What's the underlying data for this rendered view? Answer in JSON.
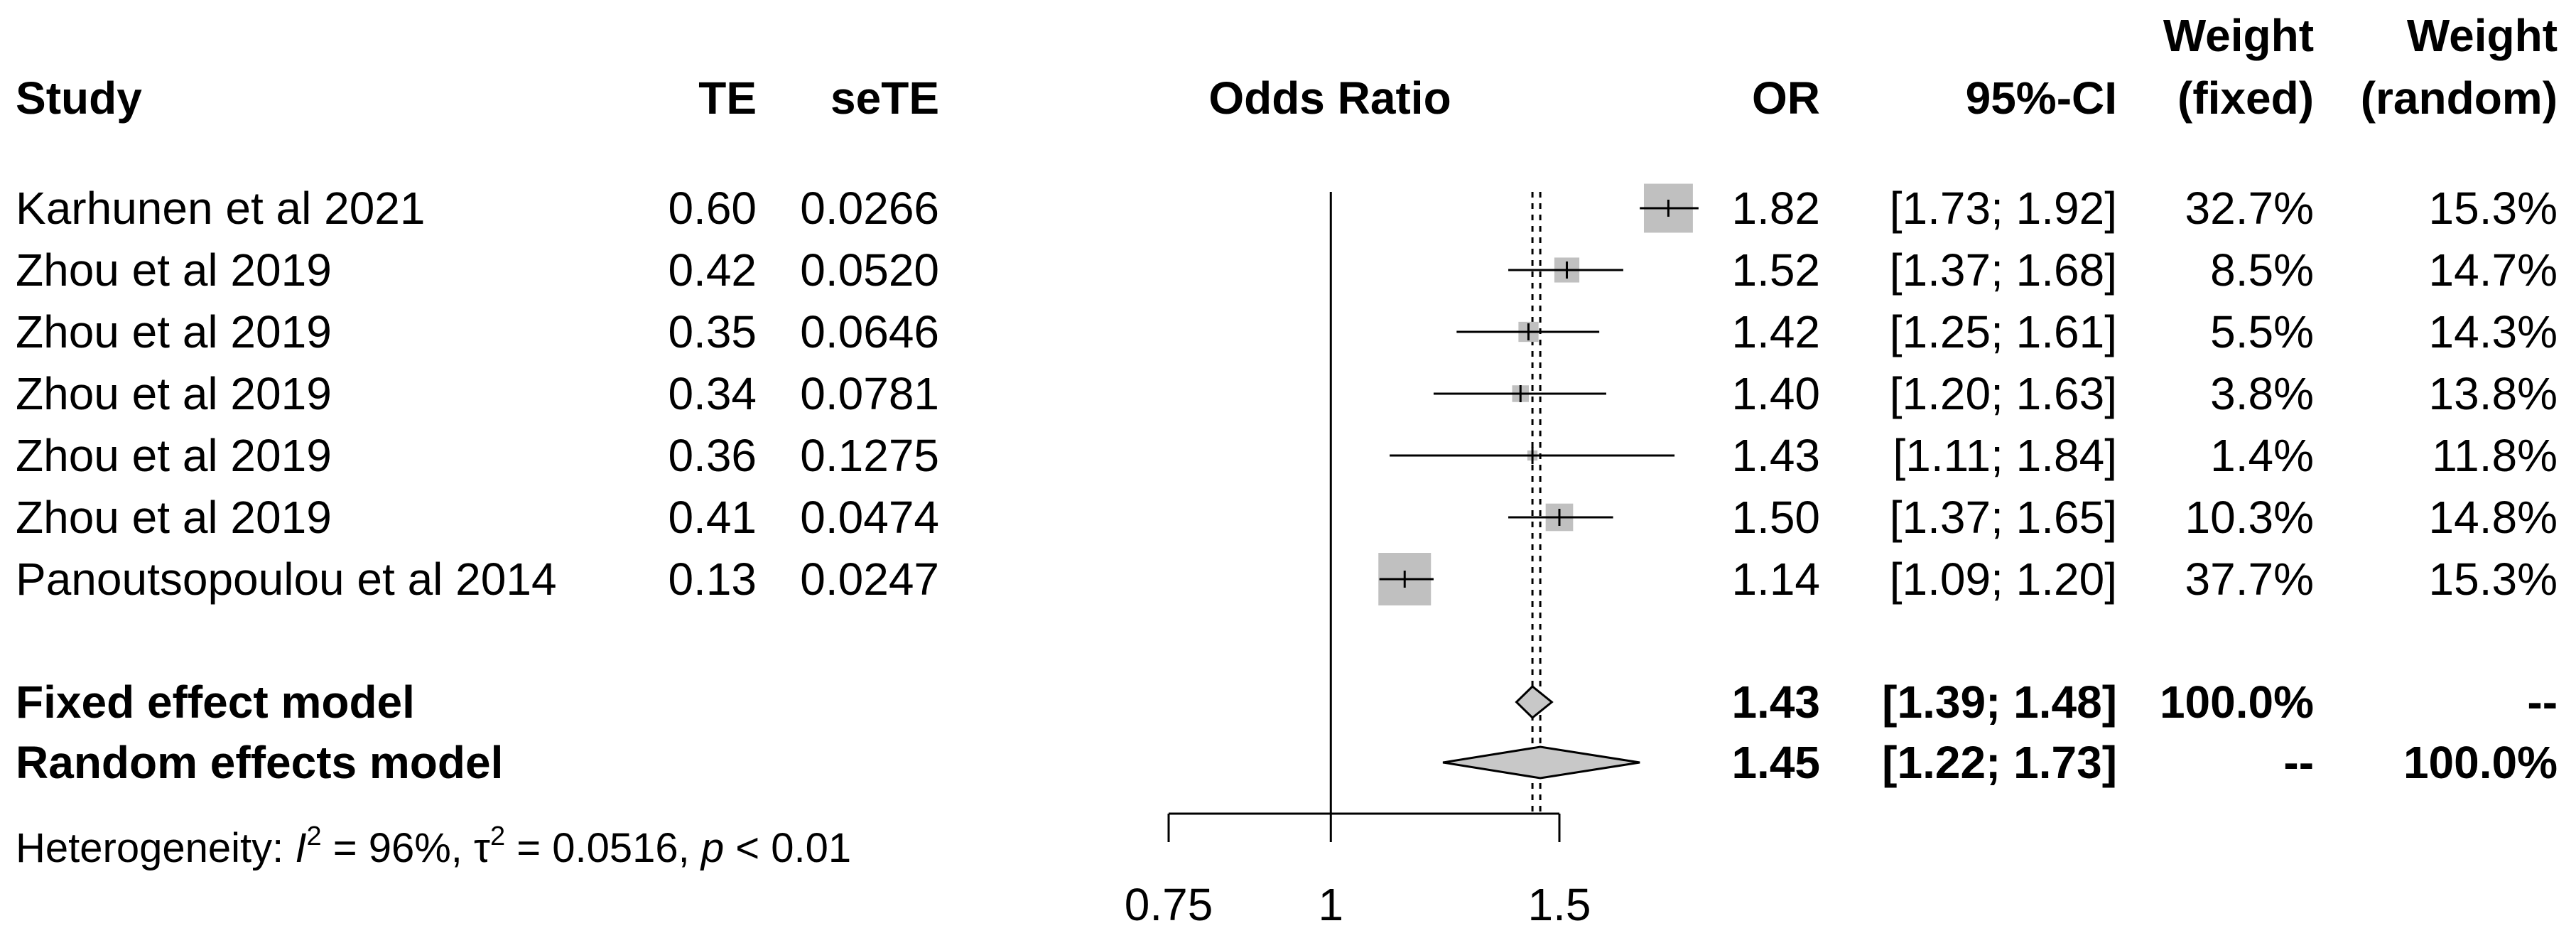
{
  "chart_data": {
    "type": "forest",
    "measure": "Odds Ratio",
    "xlabel": "Odds Ratio",
    "xscale": "log",
    "xlim": [
      0.75,
      1.5
    ],
    "xticks": [
      {
        "value": 0.75,
        "label": "0.75"
      },
      {
        "value": 1,
        "label": "1"
      },
      {
        "value": 1.5,
        "label": "1.5"
      }
    ],
    "null_line": 1,
    "headers": {
      "study": "Study",
      "te": "TE",
      "sete": "seTE",
      "plot": "Odds Ratio",
      "or": "OR",
      "ci": "95%-CI",
      "w_fixed_1": "Weight",
      "w_fixed_2": "(fixed)",
      "w_random_1": "Weight",
      "w_random_2": "(random)"
    },
    "studies": [
      {
        "name": "Karhunen et al 2021",
        "te": "0.60",
        "sete": "0.0266",
        "or": 1.82,
        "lower": 1.73,
        "upper": 1.92,
        "or_label": "1.82",
        "ci_label": "[1.73; 1.92]",
        "w_fixed": "32.7%",
        "w_random": "15.3%",
        "w_fixed_num": 32.7
      },
      {
        "name": "Zhou et al 2019",
        "te": "0.42",
        "sete": "0.0520",
        "or": 1.52,
        "lower": 1.37,
        "upper": 1.68,
        "or_label": "1.52",
        "ci_label": "[1.37; 1.68]",
        "w_fixed": "8.5%",
        "w_random": "14.7%",
        "w_fixed_num": 8.5
      },
      {
        "name": "Zhou et al 2019",
        "te": "0.35",
        "sete": "0.0646",
        "or": 1.42,
        "lower": 1.25,
        "upper": 1.61,
        "or_label": "1.42",
        "ci_label": "[1.25; 1.61]",
        "w_fixed": "5.5%",
        "w_random": "14.3%",
        "w_fixed_num": 5.5
      },
      {
        "name": "Zhou et al 2019",
        "te": "0.34",
        "sete": "0.0781",
        "or": 1.4,
        "lower": 1.2,
        "upper": 1.63,
        "or_label": "1.40",
        "ci_label": "[1.20; 1.63]",
        "w_fixed": "3.8%",
        "w_random": "13.8%",
        "w_fixed_num": 3.8
      },
      {
        "name": "Zhou et al 2019",
        "te": "0.36",
        "sete": "0.1275",
        "or": 1.43,
        "lower": 1.11,
        "upper": 1.84,
        "or_label": "1.43",
        "ci_label": "[1.11; 1.84]",
        "w_fixed": "1.4%",
        "w_random": "11.8%",
        "w_fixed_num": 1.4
      },
      {
        "name": "Zhou et al 2019",
        "te": "0.41",
        "sete": "0.0474",
        "or": 1.5,
        "lower": 1.37,
        "upper": 1.65,
        "or_label": "1.50",
        "ci_label": "[1.37; 1.65]",
        "w_fixed": "10.3%",
        "w_random": "14.8%",
        "w_fixed_num": 10.3
      },
      {
        "name": "Panoutsopoulou et al 2014",
        "te": "0.13",
        "sete": "0.0247",
        "or": 1.14,
        "lower": 1.09,
        "upper": 1.2,
        "or_label": "1.14",
        "ci_label": "[1.09; 1.20]",
        "w_fixed": "37.7%",
        "w_random": "15.3%",
        "w_fixed_num": 37.7
      }
    ],
    "models": [
      {
        "key": "fixed",
        "name": "Fixed effect model",
        "or": 1.43,
        "lower": 1.39,
        "upper": 1.48,
        "or_label": "1.43",
        "ci_label": "[1.39; 1.48]",
        "w_fixed": "100.0%",
        "w_random": "--"
      },
      {
        "key": "random",
        "name": "Random effects model",
        "or": 1.45,
        "lower": 1.22,
        "upper": 1.73,
        "or_label": "1.45",
        "ci_label": "[1.22; 1.73]",
        "w_fixed": "--",
        "w_random": "100.0%"
      }
    ],
    "heterogeneity": {
      "prefix": "Heterogeneity: ",
      "i2_symbol": "I",
      "i2_value": " = 96%, ",
      "tau_symbol": "τ",
      "tau_value": " = 0.0516, ",
      "p_symbol": "p",
      "p_value": " < 0.01",
      "superscript": "2"
    },
    "colors": {
      "box": "#c0c0c0",
      "diamond": "#c8c8c8",
      "line": "#000000"
    }
  }
}
